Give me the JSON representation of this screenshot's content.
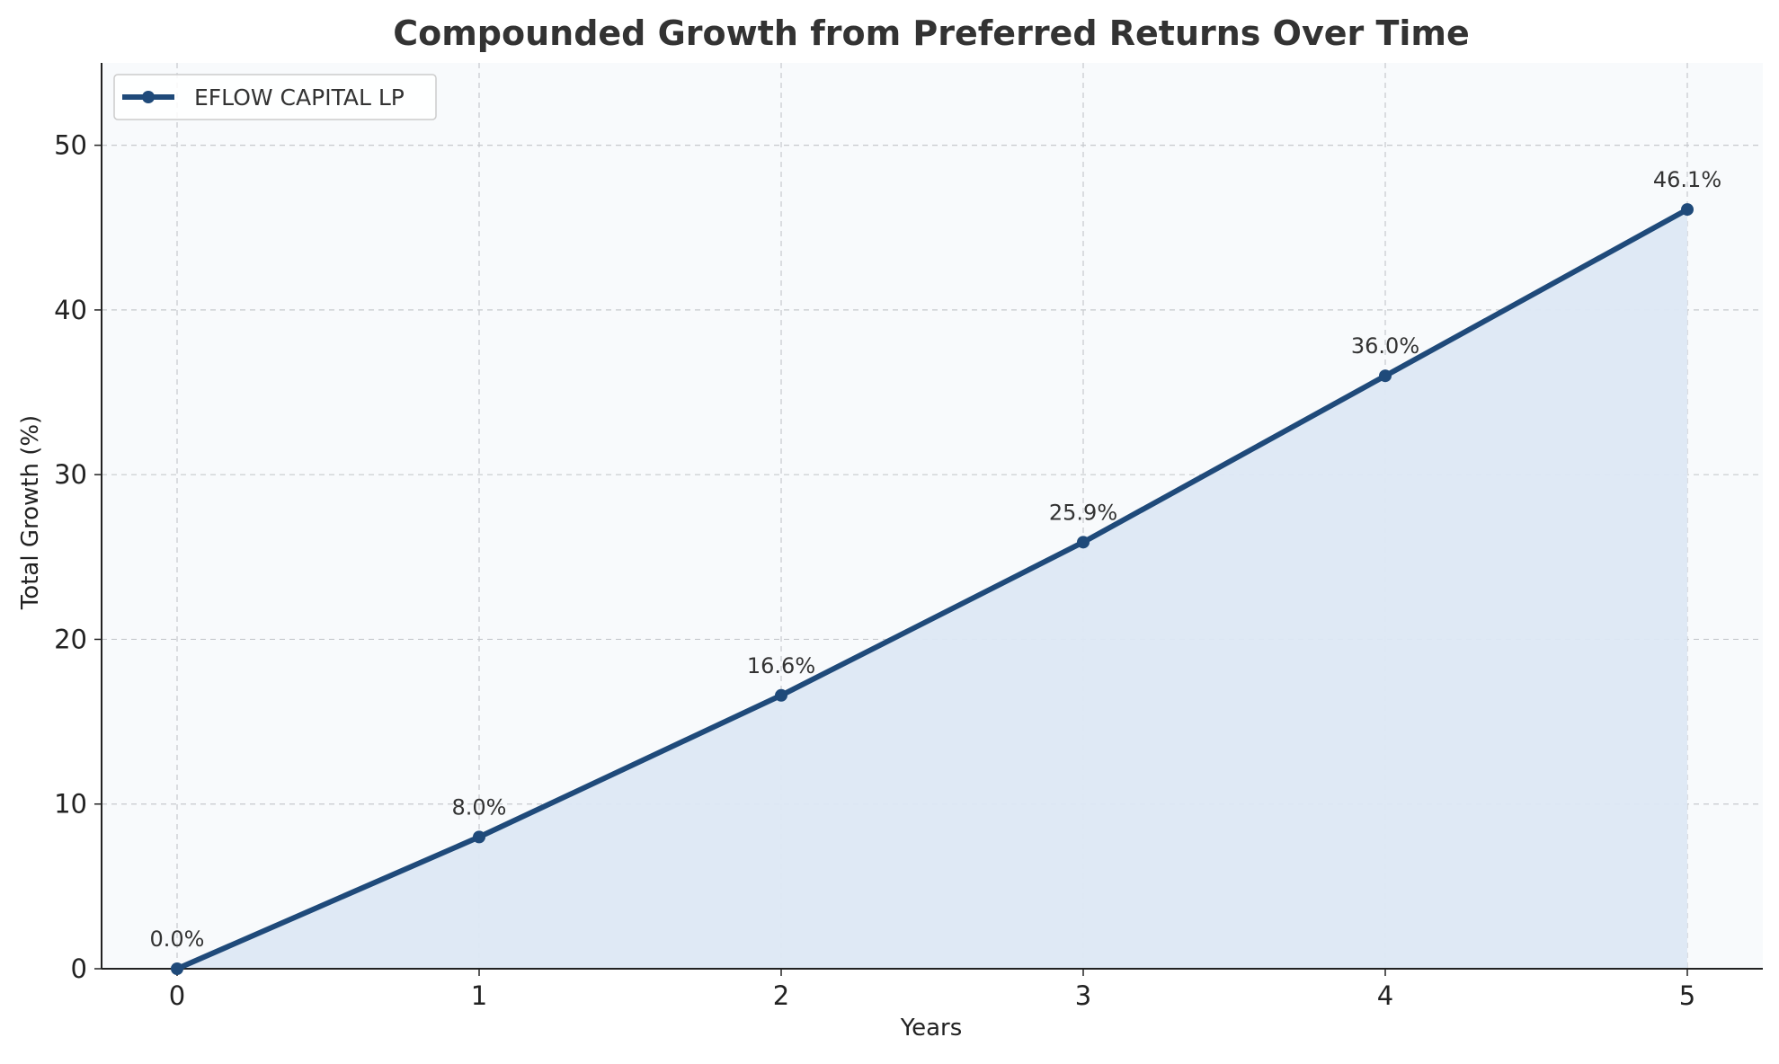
{
  "chart_data": {
    "type": "line",
    "title": "Compounded Growth from Preferred Returns Over Time",
    "xlabel": "Years",
    "ylabel": "Total Growth (%)",
    "x": [
      0,
      1,
      2,
      3,
      4,
      5
    ],
    "xlim": [
      -0.25,
      5.25
    ],
    "ylim": [
      0,
      55
    ],
    "xticks": [
      "0",
      "1",
      "2",
      "3",
      "4",
      "5"
    ],
    "yticks": [
      "0",
      "10",
      "20",
      "30",
      "40",
      "50"
    ],
    "grid": true,
    "grid_style": "dashed",
    "legend_position": "upper-left",
    "area_fill": true,
    "series": [
      {
        "name": "EFLOW CAPITAL LP",
        "values": [
          0.0,
          8.0,
          16.6,
          25.9,
          36.0,
          46.1
        ],
        "data_labels": [
          "0.0%",
          "8.0%",
          "16.6%",
          "25.9%",
          "36.0%",
          "46.1%"
        ],
        "marker": "circle"
      }
    ]
  },
  "colors": {
    "line": "#1f4a7a",
    "fill": "#dde8f4",
    "plot_background": "#f8fafc",
    "grid": "#c6c9cd",
    "axis": "#222222",
    "title": "#333333",
    "label_text": "#333333"
  }
}
